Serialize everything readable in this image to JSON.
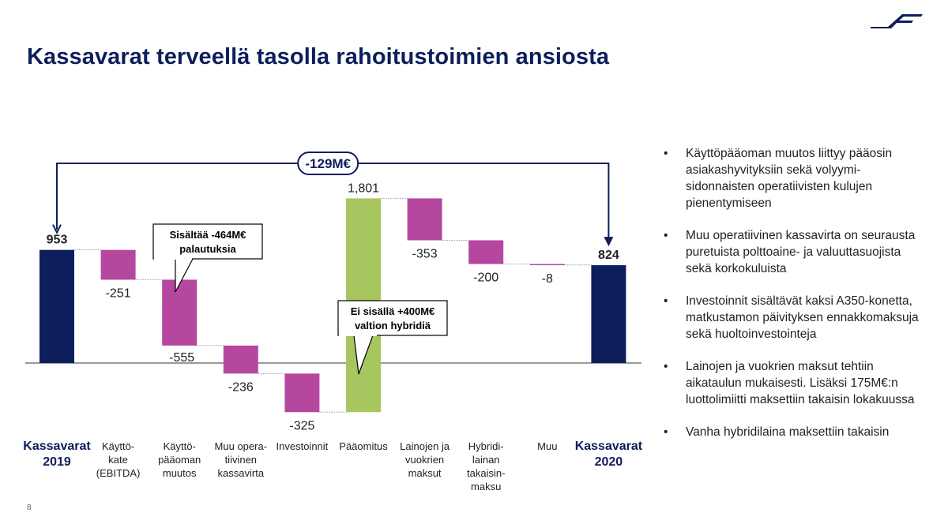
{
  "slide": {
    "title": "Kassavarat terveellä tasolla rahoitustoimien ansiosta",
    "page_number": "8"
  },
  "colors": {
    "navy": "#0c1e5b",
    "magenta": "#b5479f",
    "green": "#a8c65f",
    "connector": "#999999"
  },
  "chart_data": {
    "type": "waterfall",
    "unit": "M€",
    "categories": [
      {
        "label": [
          "Kassavarat",
          "2019"
        ],
        "kind": "total"
      },
      {
        "label": [
          "Käyttö-",
          "kate",
          "(EBITDA)"
        ],
        "kind": "delta"
      },
      {
        "label": [
          "Käyttö-",
          "pääoman",
          "muutos"
        ],
        "kind": "delta"
      },
      {
        "label": [
          "Muu opera-",
          "tiivinen",
          "kassavirta"
        ],
        "kind": "delta"
      },
      {
        "label": [
          "Investoinnit"
        ],
        "kind": "delta"
      },
      {
        "label": [
          "Pääomitus"
        ],
        "kind": "delta"
      },
      {
        "label": [
          "Lainojen ja",
          "vuokrien",
          "maksut"
        ],
        "kind": "delta"
      },
      {
        "label": [
          "Hybridi-",
          "lainan",
          "takaisin-",
          "maksu"
        ],
        "kind": "delta"
      },
      {
        "label": [
          "Muu"
        ],
        "kind": "delta"
      },
      {
        "label": [
          "Kassavarat",
          "2020"
        ],
        "kind": "total"
      }
    ],
    "values": [
      953,
      -251,
      -555,
      -236,
      -325,
      1801,
      -353,
      -200,
      -8,
      824
    ],
    "data_labels": [
      "953",
      "-251",
      "-555",
      "-236",
      "-325",
      "1,801",
      "-353",
      "-200",
      "-8",
      "824"
    ],
    "bridge_label": "-129M€",
    "callouts": [
      {
        "lines": [
          "Sisältää -464M€",
          "palautuksia"
        ],
        "target_index": 2
      },
      {
        "lines": [
          "Ei sisällä +400M€",
          "valtion hybridiä"
        ],
        "target_index": 5
      }
    ]
  },
  "bullets": [
    "Käyttöpääoman muutos liittyy pääosin asiakashyvityksiin sekä volyymi-sidonnaisten operatiivisten kulujen pienentymiseen",
    "Muu operatiivinen kassavirta on seurausta puretuista polttoaine- ja valuuttasuojista sekä korkokuluista",
    "Investoinnit sisältävät kaksi A350-konetta, matkustamon päivityksen ennakkomaksuja sekä huoltoinvestointeja",
    "Lainojen ja vuokrien maksut tehtiin aikataulun mukaisesti. Lisäksi 175M€:n luottolimiitti maksettiin takaisin lokakuussa",
    "Vanha hybridilaina maksettiin takaisin"
  ],
  "bullet_char": "•"
}
